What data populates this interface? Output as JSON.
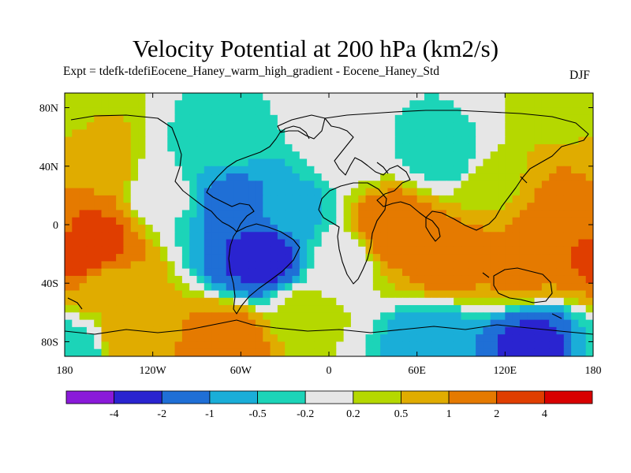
{
  "chart_data": {
    "type": "heatmap",
    "title": "Velocity Potential at 200 hPa (km2/s)",
    "subtitle": "Expt = tdefk-tdefiEocene_Haney_warm_high_gradient - Eocene_Haney_Std",
    "season": "DJF",
    "xlim": [
      -180,
      180
    ],
    "ylim": [
      -90,
      90
    ],
    "x_ticks": [
      {
        "value": -180,
        "label": "180"
      },
      {
        "value": -120,
        "label": "120W"
      },
      {
        "value": -60,
        "label": "60W"
      },
      {
        "value": 0,
        "label": "0"
      },
      {
        "value": 60,
        "label": "60E"
      },
      {
        "value": 120,
        "label": "120E"
      },
      {
        "value": 180,
        "label": "180"
      }
    ],
    "y_ticks": [
      {
        "value": 80,
        "label": "80N"
      },
      {
        "value": 40,
        "label": "40N"
      },
      {
        "value": 0,
        "label": "0"
      },
      {
        "value": -40,
        "label": "40S"
      },
      {
        "value": -80,
        "label": "80S"
      }
    ],
    "colorbar": {
      "levels": [
        -4,
        -2,
        -1,
        -0.5,
        -0.2,
        0.2,
        0.5,
        1,
        2,
        4
      ],
      "labels": [
        "-4",
        "-2",
        "-1",
        "-0.5",
        "-0.2",
        "0.2",
        "0.5",
        "1",
        "2",
        "4"
      ],
      "colors": [
        "#8a1ad9",
        "#2a24d0",
        "#1f6fd6",
        "#1aaed8",
        "#1cd4b8",
        "#e6e6e6",
        "#b5d800",
        "#e0ac00",
        "#e57a00",
        "#e03e00",
        "#d80000"
      ]
    },
    "field_centers": [
      {
        "lon": -170,
        "lat": -15,
        "value": 3.5
      },
      {
        "lon": -165,
        "lat": 38,
        "value": 0.9
      },
      {
        "lon": -150,
        "lat": -45,
        "value": 0.6
      },
      {
        "lon": -45,
        "lat": -20,
        "value": -2.6
      },
      {
        "lon": -65,
        "lat": 15,
        "value": -1.3
      },
      {
        "lon": -25,
        "lat": 10,
        "value": -0.6
      },
      {
        "lon": -70,
        "lat": 55,
        "value": -0.4
      },
      {
        "lon": -110,
        "lat": 20,
        "value": -0.15
      },
      {
        "lon": 45,
        "lat": 0,
        "value": 1.6
      },
      {
        "lon": 80,
        "lat": -20,
        "value": 1.5
      },
      {
        "lon": 150,
        "lat": -5,
        "value": 1.4
      },
      {
        "lon": 175,
        "lat": 0,
        "value": 1.8
      },
      {
        "lon": 130,
        "lat": -30,
        "value": 1.1
      },
      {
        "lon": 110,
        "lat": 25,
        "value": 0.4
      },
      {
        "lon": 80,
        "lat": 45,
        "value": -0.35
      },
      {
        "lon": 65,
        "lat": 55,
        "value": -0.3
      },
      {
        "lon": 15,
        "lat": 50,
        "value": 0.05
      },
      {
        "lon": 0,
        "lat": 75,
        "value": 0.0
      },
      {
        "lon": 5,
        "lat": -25,
        "value": -0.05
      },
      {
        "lon": -15,
        "lat": -60,
        "value": 0.3
      },
      {
        "lon": -70,
        "lat": -82,
        "value": 1.4
      },
      {
        "lon": -140,
        "lat": -78,
        "value": 0.7
      },
      {
        "lon": 140,
        "lat": -82,
        "value": -2.3
      },
      {
        "lon": 70,
        "lat": -80,
        "value": -0.8
      },
      {
        "lon": -170,
        "lat": -85,
        "value": -0.4
      },
      {
        "lon": 170,
        "lat": 80,
        "value": 0.3
      }
    ]
  }
}
